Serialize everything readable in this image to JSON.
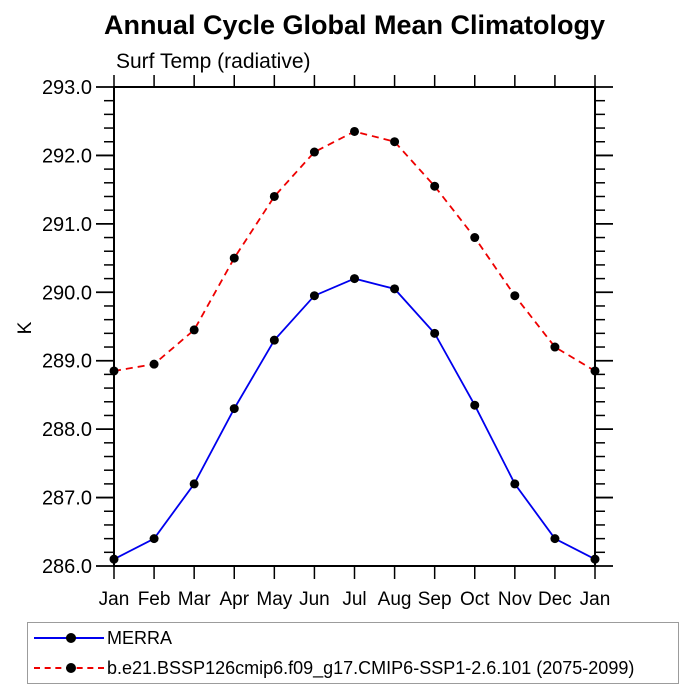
{
  "chart_data": {
    "type": "line",
    "title": "Annual Cycle Global Mean Climatology",
    "subtitle": "Surf Temp (radiative)",
    "xlabel": "",
    "ylabel": "K",
    "ylim": [
      286.0,
      293.0
    ],
    "ytick_labels": [
      "286.0",
      "287.0",
      "288.0",
      "289.0",
      "290.0",
      "291.0",
      "292.0",
      "293.0"
    ],
    "ytick_minor_step": 0.2,
    "grid": false,
    "legend_position": "bottom-left-box",
    "categories": [
      "Jan",
      "Feb",
      "Mar",
      "Apr",
      "May",
      "Jun",
      "Jul",
      "Aug",
      "Sep",
      "Oct",
      "Nov",
      "Dec",
      "Jan"
    ],
    "series": [
      {
        "name": "MERRA",
        "line_style": "solid",
        "color": "#0000ee",
        "marker": "filled-circle",
        "marker_color": "#000000",
        "values": [
          286.1,
          286.4,
          287.2,
          288.3,
          289.3,
          289.95,
          290.2,
          290.05,
          289.4,
          288.35,
          287.2,
          286.4,
          286.1
        ]
      },
      {
        "name": "b.e21.BSSP126cmip6.f09_g17.CMIP6-SSP1-2.6.101 (2075-2099)",
        "line_style": "dashed",
        "color": "#ee0000",
        "marker": "filled-circle",
        "marker_color": "#000000",
        "values": [
          288.85,
          288.95,
          289.45,
          290.5,
          291.4,
          292.05,
          292.35,
          292.2,
          291.55,
          290.8,
          289.95,
          289.2,
          288.85
        ]
      }
    ]
  }
}
